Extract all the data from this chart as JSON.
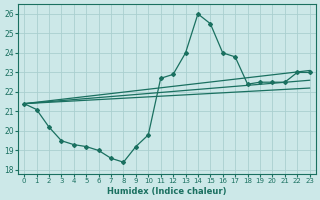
{
  "xlabel": "Humidex (Indice chaleur)",
  "xlim": [
    -0.5,
    23.5
  ],
  "ylim": [
    17.8,
    26.5
  ],
  "xticks": [
    0,
    1,
    2,
    3,
    4,
    5,
    6,
    7,
    8,
    9,
    10,
    11,
    12,
    13,
    14,
    15,
    16,
    17,
    18,
    19,
    20,
    21,
    22,
    23
  ],
  "yticks": [
    18,
    19,
    20,
    21,
    22,
    23,
    24,
    25,
    26
  ],
  "bg_color": "#cce8e8",
  "grid_color": "#aacfcf",
  "line_color": "#1a7060",
  "main_series": {
    "x": [
      0,
      1,
      2,
      3,
      4,
      5,
      6,
      7,
      8,
      9,
      10,
      11,
      12,
      13,
      14,
      15,
      16,
      17,
      18,
      19,
      20,
      21,
      22,
      23
    ],
    "y": [
      21.4,
      21.1,
      20.2,
      19.5,
      19.3,
      19.2,
      19.0,
      18.6,
      18.4,
      19.2,
      19.8,
      22.7,
      22.9,
      24.0,
      26.0,
      25.5,
      24.0,
      23.8,
      22.4,
      22.5,
      22.5,
      22.5,
      23.0,
      23.0
    ],
    "marker": "D",
    "markersize": 2.0,
    "linewidth": 0.9
  },
  "linear_lines": [
    {
      "x": [
        0,
        23
      ],
      "y": [
        21.4,
        23.1
      ]
    },
    {
      "x": [
        0,
        23
      ],
      "y": [
        21.4,
        22.6
      ]
    },
    {
      "x": [
        0,
        23
      ],
      "y": [
        21.4,
        22.2
      ]
    }
  ]
}
